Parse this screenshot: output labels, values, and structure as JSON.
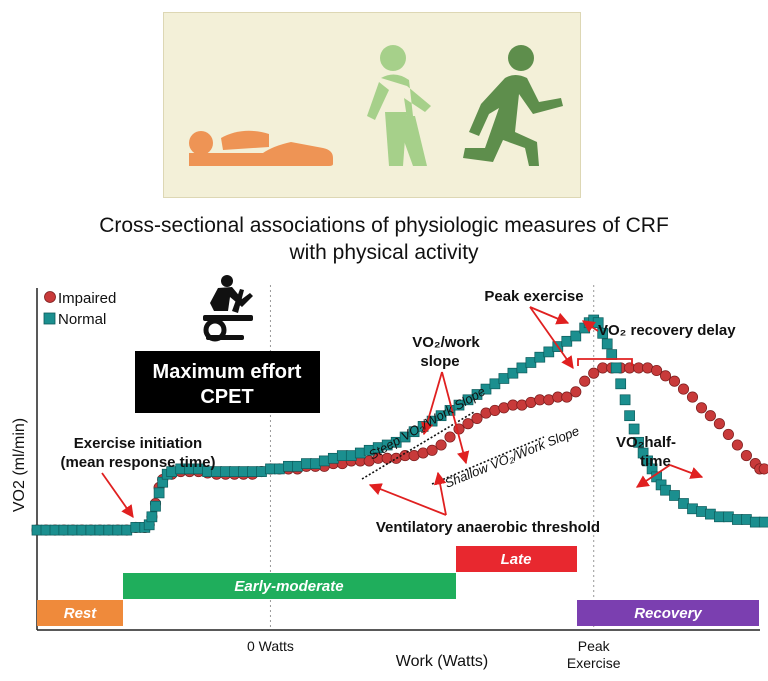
{
  "header": {
    "title_line1": "Cross-sectional associations of physiologic measures of CRF",
    "title_line2": "with physical activity"
  },
  "hero_icons": [
    "person-lying-icon",
    "person-walking-icon",
    "person-running-icon"
  ],
  "colors": {
    "hero_bg": "#f3f0d8",
    "impaired": "#c83a3a",
    "normal": "#1b8f8f",
    "rest": "#ef8a3b",
    "early_moderate": "#1fae5c",
    "late": "#e8282f",
    "recovery": "#7b3fb0",
    "arrow": "#e02020"
  },
  "chart_data": {
    "type": "scatter",
    "title": "",
    "xlabel": "Work (Watts)",
    "ylabel": "VO2 (ml/min)",
    "x_ticks": [
      {
        "x": 26,
        "label": "0 Watts"
      },
      {
        "x": 62,
        "label": "Peak"
      }
    ],
    "x_tick_sublabels": [
      "Exercise"
    ],
    "xlim": [
      0,
      80
    ],
    "ylim": [
      0,
      100
    ],
    "grid": "vertical dotted",
    "legend": "top-left",
    "series": [
      {
        "name": "Impaired",
        "marker": "circle",
        "points": [
          [
            0,
            12
          ],
          [
            1,
            12
          ],
          [
            2,
            12
          ],
          [
            3,
            12
          ],
          [
            4,
            12
          ],
          [
            5,
            12
          ],
          [
            6,
            12
          ],
          [
            7,
            12
          ],
          [
            8,
            12
          ],
          [
            9,
            12
          ],
          [
            10,
            12
          ],
          [
            11,
            13
          ],
          [
            12,
            13
          ],
          [
            12.5,
            14
          ],
          [
            12.8,
            17
          ],
          [
            13.2,
            22
          ],
          [
            13.6,
            28
          ],
          [
            14,
            31
          ],
          [
            15,
            33
          ],
          [
            16,
            34
          ],
          [
            17,
            34
          ],
          [
            18,
            34
          ],
          [
            19,
            33.5
          ],
          [
            20,
            33
          ],
          [
            21,
            33
          ],
          [
            22,
            33
          ],
          [
            23,
            33
          ],
          [
            24,
            33
          ],
          [
            25,
            34
          ],
          [
            26,
            35
          ],
          [
            27,
            35
          ],
          [
            28,
            35
          ],
          [
            29,
            35
          ],
          [
            30,
            36
          ],
          [
            31,
            36
          ],
          [
            32,
            36
          ],
          [
            33,
            37
          ],
          [
            34,
            37
          ],
          [
            35,
            38
          ],
          [
            36,
            38
          ],
          [
            37,
            38
          ],
          [
            38,
            39
          ],
          [
            39,
            39
          ],
          [
            40,
            39
          ],
          [
            41,
            40
          ],
          [
            42,
            40
          ],
          [
            43,
            41
          ],
          [
            44,
            42
          ],
          [
            45,
            44
          ],
          [
            46,
            47
          ],
          [
            47,
            50
          ],
          [
            48,
            52
          ],
          [
            49,
            54
          ],
          [
            50,
            56
          ],
          [
            51,
            57
          ],
          [
            52,
            58
          ],
          [
            53,
            59
          ],
          [
            54,
            59
          ],
          [
            55,
            60
          ],
          [
            56,
            61
          ],
          [
            57,
            61
          ],
          [
            58,
            62
          ],
          [
            59,
            62
          ],
          [
            60,
            64
          ],
          [
            61,
            68
          ],
          [
            62,
            71
          ],
          [
            63,
            73
          ],
          [
            64,
            73
          ],
          [
            65,
            73
          ],
          [
            66,
            73
          ],
          [
            67,
            73
          ],
          [
            68,
            73
          ],
          [
            69,
            72
          ],
          [
            70,
            70
          ],
          [
            71,
            68
          ],
          [
            72,
            65
          ],
          [
            73,
            62
          ],
          [
            74,
            58
          ],
          [
            75,
            55
          ],
          [
            76,
            52
          ],
          [
            77,
            48
          ],
          [
            78,
            44
          ],
          [
            79,
            40
          ],
          [
            80,
            37
          ],
          [
            80.5,
            35
          ],
          [
            81,
            35
          ]
        ]
      },
      {
        "name": "Normal",
        "marker": "square",
        "points": [
          [
            0,
            12
          ],
          [
            1,
            12
          ],
          [
            2,
            12
          ],
          [
            3,
            12
          ],
          [
            4,
            12
          ],
          [
            5,
            12
          ],
          [
            6,
            12
          ],
          [
            7,
            12
          ],
          [
            8,
            12
          ],
          [
            9,
            12
          ],
          [
            10,
            12
          ],
          [
            11,
            13
          ],
          [
            12,
            13
          ],
          [
            12.5,
            14
          ],
          [
            12.8,
            17
          ],
          [
            13.2,
            21
          ],
          [
            13.6,
            26
          ],
          [
            14,
            30
          ],
          [
            14.5,
            33
          ],
          [
            15,
            34
          ],
          [
            16,
            35
          ],
          [
            17,
            35
          ],
          [
            18,
            35
          ],
          [
            19,
            34
          ],
          [
            20,
            34
          ],
          [
            21,
            34
          ],
          [
            22,
            34
          ],
          [
            23,
            34
          ],
          [
            24,
            34
          ],
          [
            25,
            34
          ],
          [
            26,
            35
          ],
          [
            27,
            35
          ],
          [
            28,
            36
          ],
          [
            29,
            36
          ],
          [
            30,
            37
          ],
          [
            31,
            37
          ],
          [
            32,
            38
          ],
          [
            33,
            39
          ],
          [
            34,
            40
          ],
          [
            35,
            40
          ],
          [
            36,
            41
          ],
          [
            37,
            42
          ],
          [
            38,
            43
          ],
          [
            39,
            44
          ],
          [
            40,
            45
          ],
          [
            41,
            47
          ],
          [
            42,
            49
          ],
          [
            43,
            51
          ],
          [
            44,
            53
          ],
          [
            45,
            55
          ],
          [
            46,
            57
          ],
          [
            47,
            59
          ],
          [
            48,
            61
          ],
          [
            49,
            63
          ],
          [
            50,
            65
          ],
          [
            51,
            67
          ],
          [
            52,
            69
          ],
          [
            53,
            71
          ],
          [
            54,
            73
          ],
          [
            55,
            75
          ],
          [
            56,
            77
          ],
          [
            57,
            79
          ],
          [
            58,
            81
          ],
          [
            59,
            83
          ],
          [
            60,
            85
          ],
          [
            61,
            88
          ],
          [
            61.5,
            90
          ],
          [
            62,
            91
          ],
          [
            62.5,
            90
          ],
          [
            63,
            86
          ],
          [
            63.5,
            82
          ],
          [
            64,
            78
          ],
          [
            64.5,
            73
          ],
          [
            65,
            67
          ],
          [
            65.5,
            61
          ],
          [
            66,
            55
          ],
          [
            66.5,
            50
          ],
          [
            67,
            45
          ],
          [
            67.5,
            41
          ],
          [
            68,
            38
          ],
          [
            68.5,
            35
          ],
          [
            69,
            32
          ],
          [
            69.5,
            29
          ],
          [
            70,
            27
          ],
          [
            71,
            25
          ],
          [
            72,
            22
          ],
          [
            73,
            20
          ],
          [
            74,
            19
          ],
          [
            75,
            18
          ],
          [
            76,
            17
          ],
          [
            77,
            17
          ],
          [
            78,
            16
          ],
          [
            79,
            16
          ],
          [
            80,
            15
          ],
          [
            81,
            15
          ]
        ]
      }
    ],
    "phases": [
      {
        "label": "Rest",
        "x": [
          0,
          10
        ]
      },
      {
        "label": "Early-moderate",
        "x": [
          10,
          48
        ]
      },
      {
        "label": "Late",
        "x": [
          48,
          62
        ]
      },
      {
        "label": "Recovery",
        "x": [
          62,
          81
        ]
      }
    ],
    "annotations": {
      "maximum_effort_line1": "Maximum effort",
      "maximum_effort_line2": "CPET",
      "exercise_initiation_line1": "Exercise initiation",
      "exercise_initiation_line2": "(mean response time)",
      "peak_exercise": "Peak exercise",
      "vo2_recovery_delay": "VO₂ recovery delay",
      "vo2_work_slope_line1": "VO₂/work",
      "vo2_work_slope_line2": "slope",
      "steep_slope": "Steep VO₂/Work Slope",
      "shallow_slope": "Shallow VO₂/Work Slope",
      "vo2_half_time_line1": "VO₂half-",
      "vo2_half_time_line2": "time",
      "ventilatory_threshold": "Ventilatory anaerobic threshold"
    }
  }
}
